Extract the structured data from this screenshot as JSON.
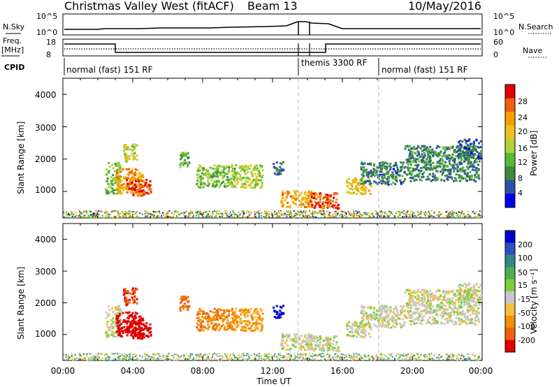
{
  "header": {
    "title": "Christmas Valley West (fitACF)",
    "beam": "Beam 13",
    "date": "10/May/2016"
  },
  "nsky_panel": {
    "left_label": "N.Sky",
    "left_ticks": [
      "10^5",
      "10^0"
    ],
    "right_label": "N.Search",
    "right_ticks": [
      "10^5",
      "10^0"
    ]
  },
  "freq_panel": {
    "left_label_1": "Freq.",
    "left_label_2": "[MHz]",
    "left_ticks": [
      "18",
      "8"
    ],
    "right_label": "Nave",
    "right_ticks": [
      "60",
      "0"
    ]
  },
  "cpid": {
    "label": "CPID",
    "segments": [
      {
        "text": "normal (fast) 151 RF",
        "start": 0.0
      },
      {
        "text": "themis 3300 RF",
        "start": 13.4
      },
      {
        "text": "normal (fast) 151 RF",
        "start": 18.0
      }
    ]
  },
  "time_axis": {
    "label": "Time UT",
    "ticks": [
      "00:00",
      "04:00",
      "08:00",
      "12:00",
      "16:00",
      "20:00",
      "00:00"
    ]
  },
  "power_panel": {
    "ylabel": "Slant Range [km]",
    "yticks": [
      "4000",
      "3000",
      "2000",
      "1000"
    ],
    "colorbar_label": "Power [dB]",
    "colorbar_ticks": [
      "28",
      "24",
      "20",
      "16",
      "12",
      "8",
      "4"
    ],
    "colors": [
      "#0000ee",
      "#2f4fa5",
      "#3c8a3c",
      "#55bb33",
      "#b2d23a",
      "#f0c020",
      "#f8a000",
      "#f06010",
      "#e00000"
    ]
  },
  "velocity_panel": {
    "ylabel": "Slant Range [km]",
    "yticks": [
      "4000",
      "3000",
      "2000",
      "1000"
    ],
    "colorbar_label": "Velocity [m s⁻¹]",
    "colorbar_ticks": [
      "200",
      "100",
      "50",
      "15",
      "-15",
      "-50",
      "-100",
      "-200"
    ],
    "colors": [
      "#0000cc",
      "#2a52be",
      "#2f8a8a",
      "#4caf50",
      "#7ad03a",
      "#c8c8c8",
      "#f5c040",
      "#f59000",
      "#f06010",
      "#e00000"
    ]
  },
  "chart_data": {
    "type": "heatmap",
    "x_unit": "hours UT",
    "xlim": [
      0,
      24
    ],
    "ylim_km": [
      180,
      4500
    ],
    "range_gate_noise_band_km": [
      180,
      400
    ],
    "features": [
      {
        "t": [
          1.0,
          2.0
        ],
        "r": [
          200,
          320
        ],
        "power_db": 10,
        "velocity": 20
      },
      {
        "t": [
          2.4,
          3.3
        ],
        "r": [
          900,
          1900
        ],
        "power_db": 14,
        "velocity": 0
      },
      {
        "t": [
          3.0,
          4.6
        ],
        "r": [
          900,
          1700
        ],
        "power_db": 22,
        "velocity": -200
      },
      {
        "t": [
          3.6,
          5.0
        ],
        "r": [
          850,
          1350
        ],
        "power_db": 27,
        "velocity": -210
      },
      {
        "t": [
          3.4,
          4.2
        ],
        "r": [
          1900,
          2500
        ],
        "power_db": 18,
        "velocity": -150
      },
      {
        "t": [
          6.6,
          7.2
        ],
        "r": [
          1700,
          2200
        ],
        "power_db": 12,
        "velocity": -120
      },
      {
        "t": [
          7.6,
          9.8
        ],
        "r": [
          1100,
          1800
        ],
        "power_db": 14,
        "velocity": -90
      },
      {
        "t": [
          9.6,
          11.4
        ],
        "r": [
          1100,
          1800
        ],
        "power_db": 16,
        "velocity": -60
      },
      {
        "t": [
          12.0,
          12.6
        ],
        "r": [
          1500,
          1900
        ],
        "power_db": 8,
        "velocity": 220
      },
      {
        "t": [
          12.4,
          14.2
        ],
        "r": [
          500,
          1000
        ],
        "power_db": 22,
        "velocity": 0
      },
      {
        "t": [
          14.0,
          15.8
        ],
        "r": [
          450,
          950
        ],
        "power_db": 26,
        "velocity": 0
      },
      {
        "t": [
          16.2,
          17.6
        ],
        "r": [
          900,
          1400
        ],
        "power_db": 20,
        "velocity": 0
      },
      {
        "t": [
          17.0,
          19.5
        ],
        "r": [
          1200,
          1900
        ],
        "power_db": 9,
        "velocity": 0
      },
      {
        "t": [
          19.5,
          23.8
        ],
        "r": [
          1300,
          2400
        ],
        "power_db": 10,
        "velocity": 0
      },
      {
        "t": [
          22.5,
          23.9
        ],
        "r": [
          2000,
          2600
        ],
        "power_db": 8,
        "velocity": 0
      }
    ],
    "frequency_mhz": [
      {
        "t": [
          0,
          3.0
        ],
        "value": 16
      },
      {
        "t": [
          3.0,
          15.5
        ],
        "value": 10
      },
      {
        "t": [
          15.5,
          24
        ],
        "value": 16
      }
    ],
    "nave": [
      {
        "t": [
          0,
          3.0
        ],
        "value": 16
      },
      {
        "t": [
          3.0,
          15.5
        ],
        "value": 13
      },
      {
        "t": [
          15.5,
          24
        ],
        "value": 16
      }
    ]
  }
}
